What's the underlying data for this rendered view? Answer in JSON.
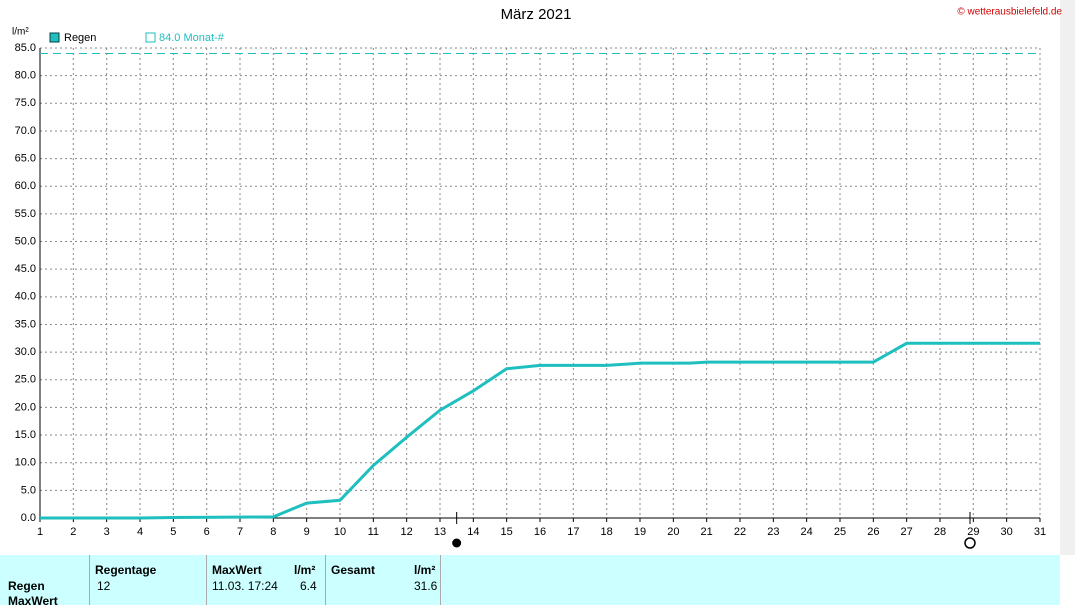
{
  "chart_data": {
    "type": "line",
    "title": "März 2021",
    "copyright": "© wetterausbielefeld.de",
    "y_unit": "l/m²",
    "x": [
      1,
      4,
      5,
      8,
      9,
      10,
      11,
      12,
      13,
      14,
      15,
      16,
      18,
      19,
      20.5,
      21,
      26,
      27,
      31
    ],
    "series": [
      {
        "name": "Regen",
        "color": "#1fbfbf",
        "values": [
          0,
          0,
          0.1,
          0.2,
          2.7,
          3.2,
          9.5,
          14.6,
          19.5,
          23,
          27,
          27.6,
          27.6,
          28,
          28,
          28.2,
          28.2,
          31.6,
          31.6
        ]
      }
    ],
    "reference_line": {
      "value": 84,
      "label": "84.0 Monat-#",
      "color": "#1fbfbf"
    },
    "xlim": [
      1,
      31
    ],
    "xticks": [
      1,
      2,
      3,
      4,
      5,
      6,
      7,
      8,
      9,
      10,
      11,
      12,
      13,
      14,
      15,
      16,
      17,
      18,
      19,
      20,
      21,
      22,
      23,
      24,
      25,
      26,
      27,
      28,
      29,
      30,
      31
    ],
    "ylim": [
      0,
      85
    ],
    "yticks": [
      {
        "value": 0,
        "label": "0.0"
      },
      {
        "value": 5,
        "label": "5.0"
      },
      {
        "value": 10,
        "label": "10.0"
      },
      {
        "value": 15,
        "label": "15.0"
      },
      {
        "value": 20,
        "label": "20.0"
      },
      {
        "value": 25,
        "label": "25.0"
      },
      {
        "value": 30,
        "label": "30.0"
      },
      {
        "value": 35,
        "label": "35.0"
      },
      {
        "value": 40,
        "label": "40.0"
      },
      {
        "value": 45,
        "label": "45.0"
      },
      {
        "value": 50,
        "label": "50.0"
      },
      {
        "value": 55,
        "label": "55.0"
      },
      {
        "value": 60,
        "label": "60.0"
      },
      {
        "value": 65,
        "label": "65.0"
      },
      {
        "value": 70,
        "label": "70.0"
      },
      {
        "value": 75,
        "label": "75.0"
      },
      {
        "value": 80,
        "label": "80.0"
      },
      {
        "value": 85,
        "label": "85.0"
      }
    ],
    "grid": true,
    "moon_markers": [
      {
        "x": 13.5,
        "filled": true
      },
      {
        "x": 28.9,
        "filled": false
      }
    ]
  },
  "table": {
    "columns": [
      "Regentage",
      "MaxWert",
      "l/m²",
      "Gesamt",
      "l/m²"
    ],
    "rows": [
      {
        "label": "Regen",
        "cells": [
          "12",
          "11.03.  17:24",
          "6.4",
          null,
          "31.6"
        ]
      },
      {
        "label": "MaxWert",
        "cells": []
      }
    ]
  }
}
